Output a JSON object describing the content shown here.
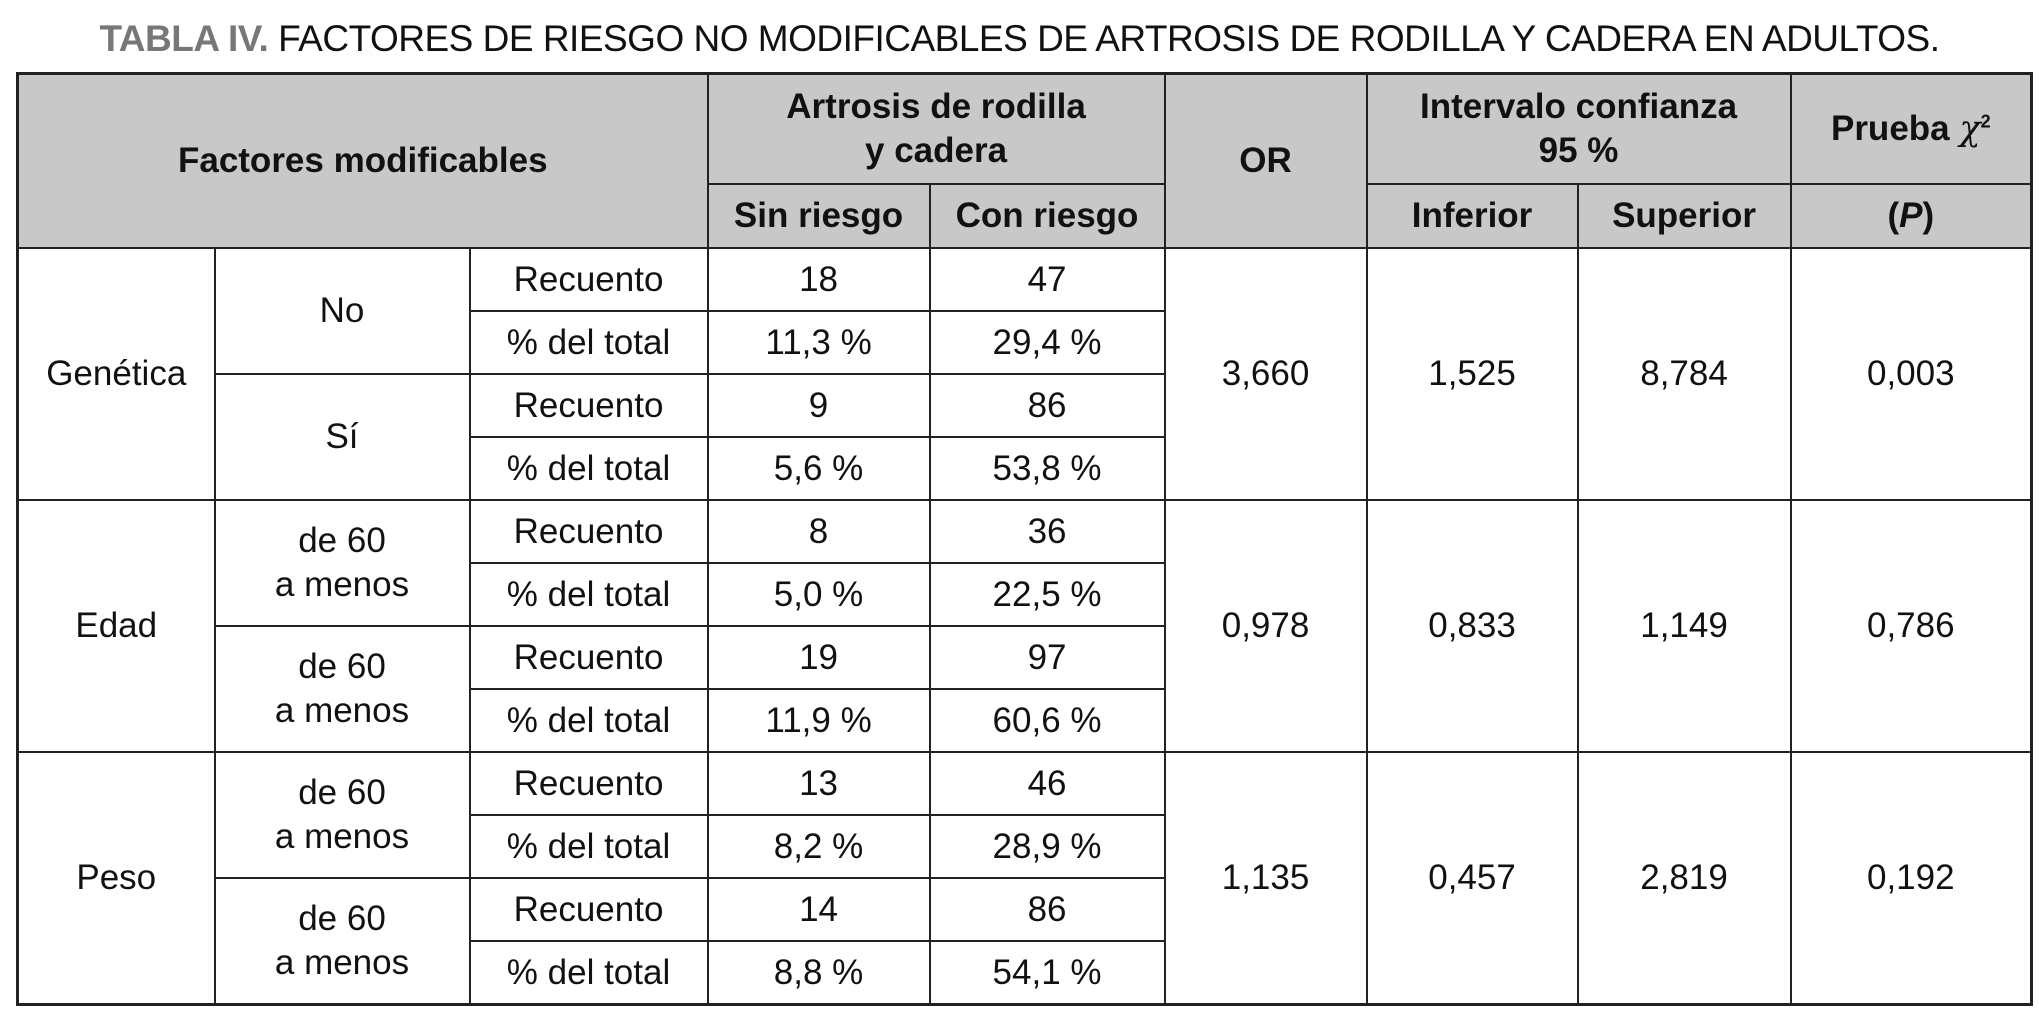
{
  "title": {
    "label": "TABLA IV.",
    "text": " FACTORES DE RIESGO NO MODIFICABLES DE ARTROSIS DE RODILLA Y CADERA EN ADULTOS."
  },
  "header": {
    "factores": "Factores modificables",
    "artrosis_line1": "Artrosis de rodilla",
    "artrosis_line2": "y cadera",
    "sin_riesgo": "Sin riesgo",
    "con_riesgo": "Con riesgo",
    "or": "OR",
    "ic_line1": "Intervalo confianza",
    "ic_line2": "95 %",
    "inferior": "Inferior",
    "superior": "Superior",
    "prueba": "Prueba ",
    "chi": "χ",
    "chi_sup": "2",
    "p": "(P)"
  },
  "groups": [
    {
      "label": "Genética",
      "or": "3,660",
      "inferior": "1,525",
      "superior": "8,784",
      "p": "0,003",
      "subgroups": [
        {
          "label": "No",
          "rows": [
            {
              "measure": "Recuento",
              "sin": "18",
              "con": "47"
            },
            {
              "measure": "% del total",
              "sin": "11,3 %",
              "con": "29,4 %"
            }
          ]
        },
        {
          "label": "Sí",
          "rows": [
            {
              "measure": "Recuento",
              "sin": "9",
              "con": "86"
            },
            {
              "measure": "% del total",
              "sin": "5,6 %",
              "con": "53,8 %"
            }
          ]
        }
      ]
    },
    {
      "label": "Edad",
      "or": "0,978",
      "inferior": "0,833",
      "superior": "1,149",
      "p": "0,786",
      "subgroups": [
        {
          "label": "de 60\na menos",
          "rows": [
            {
              "measure": "Recuento",
              "sin": "8",
              "con": "36"
            },
            {
              "measure": "% del total",
              "sin": "5,0 %",
              "con": "22,5 %"
            }
          ]
        },
        {
          "label": "de 60\na menos",
          "rows": [
            {
              "measure": "Recuento",
              "sin": "19",
              "con": "97"
            },
            {
              "measure": "% del total",
              "sin": "11,9 %",
              "con": "60,6 %"
            }
          ]
        }
      ]
    },
    {
      "label": "Peso",
      "or": "1,135",
      "inferior": "0,457",
      "superior": "2,819",
      "p": "0,192",
      "subgroups": [
        {
          "label": "de 60\na menos",
          "rows": [
            {
              "measure": "Recuento",
              "sin": "13",
              "con": "46"
            },
            {
              "measure": "% del total",
              "sin": "8,2 %",
              "con": "28,9 %"
            }
          ]
        },
        {
          "label": "de 60\na menos",
          "rows": [
            {
              "measure": "Recuento",
              "sin": "14",
              "con": "86"
            },
            {
              "measure": "% del total",
              "sin": "8,8 %",
              "con": "54,1 %"
            }
          ]
        }
      ]
    }
  ]
}
